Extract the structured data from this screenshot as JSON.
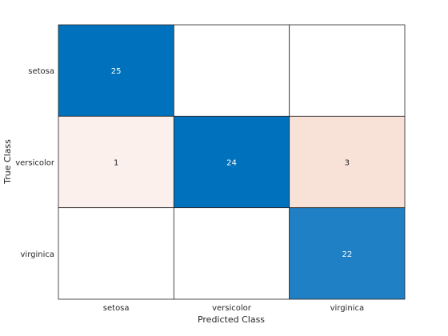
{
  "chart_data": {
    "type": "heatmap",
    "title": "",
    "xlabel": "Predicted Class",
    "ylabel": "True Class",
    "x_categories": [
      "setosa",
      "versicolor",
      "virginica"
    ],
    "y_categories": [
      "setosa",
      "versicolor",
      "virginica"
    ],
    "values": [
      [
        25,
        null,
        null
      ],
      [
        1,
        24,
        3
      ],
      [
        null,
        null,
        22
      ]
    ],
    "cell_colors": [
      [
        "#0072bd",
        "#ffffff",
        "#ffffff"
      ],
      [
        "#fbf0eb",
        "#0072bd",
        "#f8e2d8"
      ],
      [
        "#ffffff",
        "#ffffff",
        "#1f80c5"
      ]
    ],
    "grid": true,
    "legend": "none"
  }
}
